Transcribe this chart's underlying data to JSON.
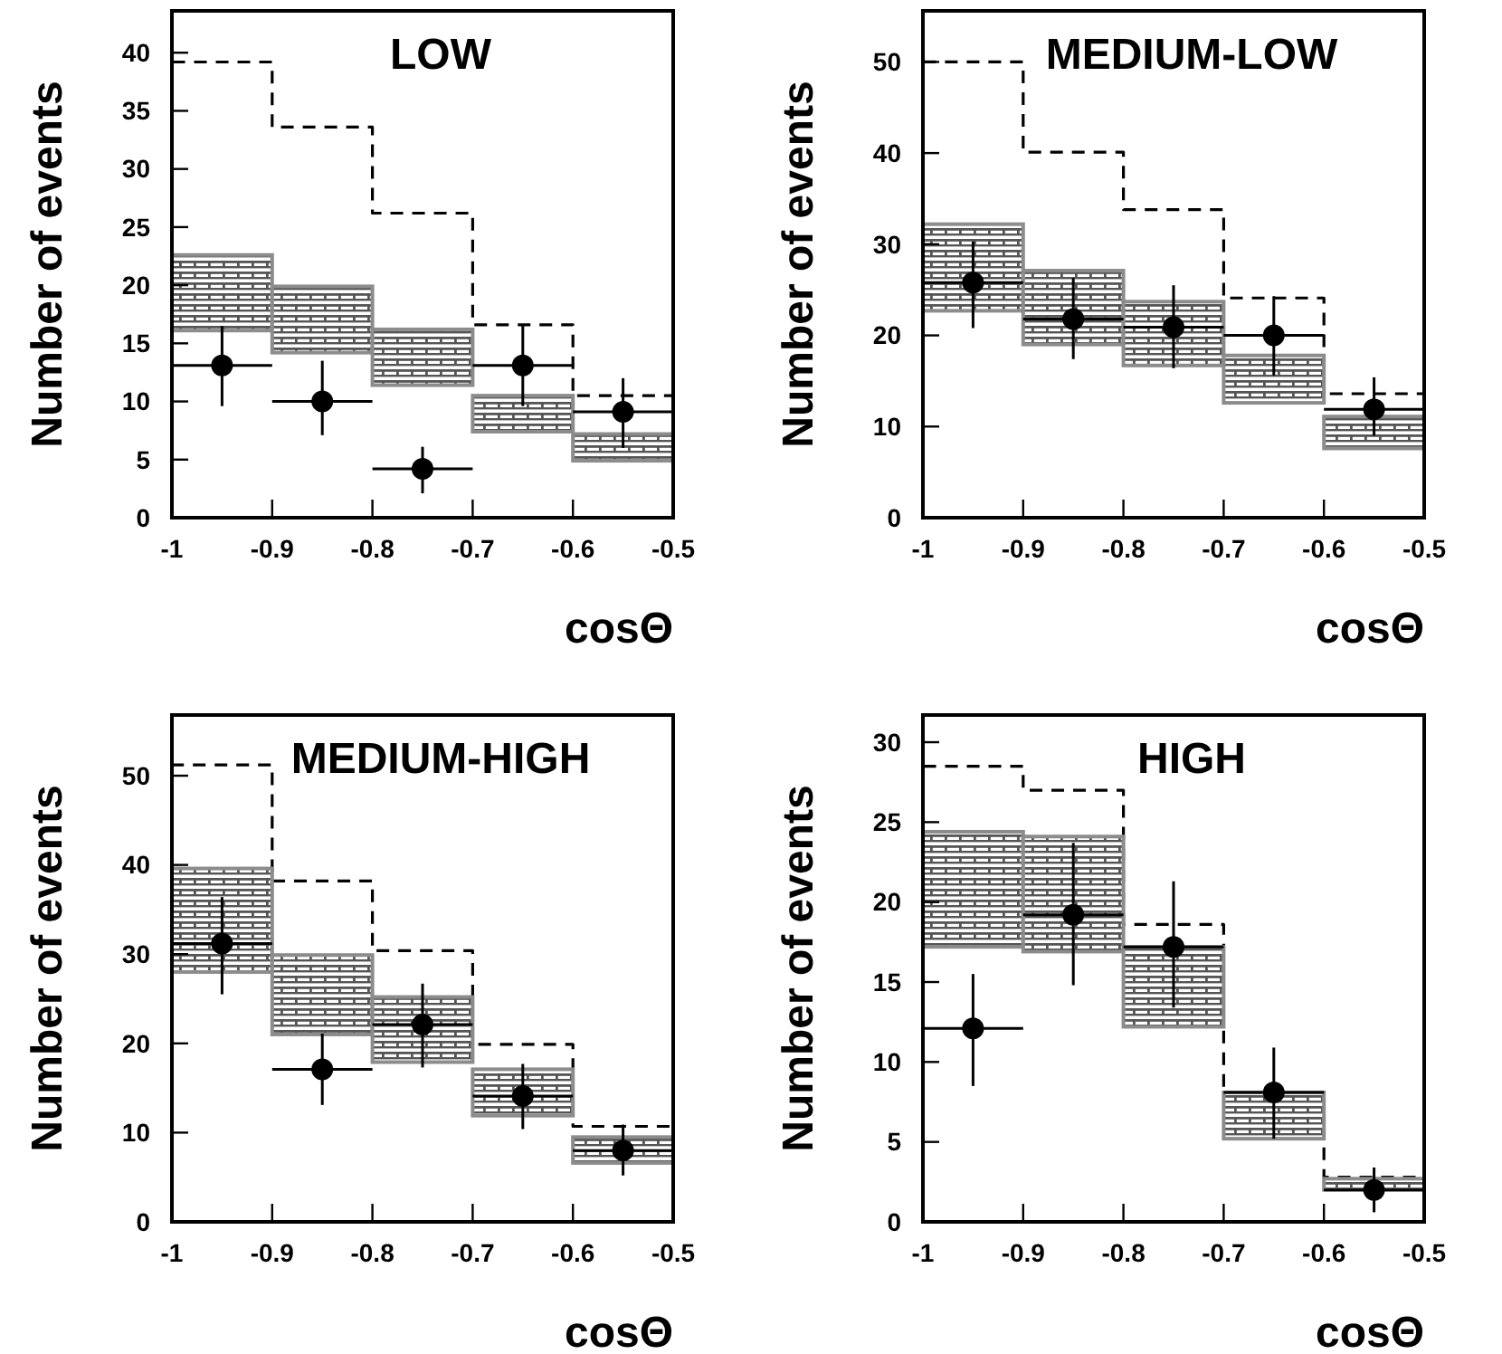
{
  "chart_data": [
    {
      "type": "histogram",
      "title": "LOW",
      "xlabel": "cosΘ",
      "ylabel": "Number of events",
      "xlim": [
        -1,
        -0.5
      ],
      "xticks": [
        -1,
        -0.9,
        -0.8,
        -0.7,
        -0.6,
        -0.5
      ],
      "ylim": [
        0,
        43.6
      ],
      "yticks": [
        0,
        5,
        10,
        15,
        20,
        25,
        30,
        35,
        40
      ],
      "bins": [
        -1,
        -0.9,
        -0.8,
        -0.7,
        -0.6,
        -0.5
      ],
      "series": [
        {
          "type": "histogram",
          "color": "#000000",
          "line_style": "dashed",
          "values": [
            39.2,
            33.6,
            26.2,
            16.6,
            10.5
          ]
        },
        {
          "type": "bar",
          "color": "#8c8c8c",
          "x": [
            -0.95,
            -0.85,
            -0.75,
            -0.65,
            -0.55
          ],
          "base": [
            16.1,
            14.2,
            11.4,
            7.4,
            4.9
          ],
          "values": [
            6.5,
            5.7,
            4.8,
            3.1,
            2.3
          ]
        },
        {
          "type": "scatter",
          "color": "#000000",
          "marker": "circle",
          "x": [
            -0.95,
            -0.85,
            -0.75,
            -0.65,
            -0.55
          ],
          "values": [
            13.1,
            10,
            4.2,
            13.1,
            9.1
          ],
          "errors": [
            [
              9.6,
              16.5
            ],
            [
              7.1,
              13.5
            ],
            [
              2.1,
              6.1
            ],
            [
              9.6,
              16.6
            ],
            [
              6,
              12
            ]
          ],
          "xerrors": [
            0.05,
            0.05,
            0.05,
            0.05,
            0.05
          ]
        }
      ]
    },
    {
      "type": "histogram",
      "title": "MEDIUM-LOW",
      "xlabel": "cosΘ",
      "ylabel": "Number of events",
      "xlim": [
        -1,
        -0.5
      ],
      "xticks": [
        -1,
        -0.9,
        -0.8,
        -0.7,
        -0.6,
        -0.5
      ],
      "ylim": [
        0,
        55.6
      ],
      "yticks": [
        0,
        10,
        20,
        30,
        40,
        50
      ],
      "bins": [
        -1,
        -0.9,
        -0.8,
        -0.7,
        -0.6,
        -0.5
      ],
      "series": [
        {
          "type": "histogram",
          "color": "#000000",
          "line_style": "dashed",
          "values": [
            50,
            40.1,
            33.8,
            24.1,
            13.6
          ]
        },
        {
          "type": "bar",
          "color": "#8c8c8c",
          "x": [
            -0.95,
            -0.85,
            -0.75,
            -0.65,
            -0.55
          ],
          "base": [
            22.7,
            19,
            16.7,
            12.6,
            7.6
          ],
          "values": [
            9.5,
            8.1,
            7,
            5.2,
            3.5
          ]
        },
        {
          "type": "scatter",
          "color": "#000000",
          "marker": "circle",
          "x": [
            -0.95,
            -0.85,
            -0.75,
            -0.65,
            -0.55
          ],
          "values": [
            25.8,
            21.8,
            20.9,
            20,
            11.9
          ],
          "errors": [
            [
              20.8,
              30.3
            ],
            [
              17.4,
              26.3
            ],
            [
              16.4,
              25.5
            ],
            [
              15.6,
              24.3
            ],
            [
              9,
              15.4
            ]
          ],
          "xerrors": [
            0.05,
            0.05,
            0.05,
            0.05,
            0.05
          ]
        }
      ]
    },
    {
      "type": "histogram",
      "title": "MEDIUM-HIGH",
      "xlabel": "cosΘ",
      "ylabel": "Number of events",
      "xlim": [
        -1,
        -0.5
      ],
      "xticks": [
        -1,
        -0.9,
        -0.8,
        -0.7,
        -0.6,
        -0.5
      ],
      "ylim": [
        0,
        56.8
      ],
      "yticks": [
        0,
        10,
        20,
        30,
        40,
        50
      ],
      "bins": [
        -1,
        -0.9,
        -0.8,
        -0.7,
        -0.6,
        -0.5
      ],
      "series": [
        {
          "type": "histogram",
          "color": "#000000",
          "line_style": "dashed",
          "values": [
            51.2,
            38.2,
            30.4,
            19.9,
            10.7
          ]
        },
        {
          "type": "bar",
          "color": "#8c8c8c",
          "x": [
            -0.95,
            -0.85,
            -0.75,
            -0.65,
            -0.55
          ],
          "base": [
            28,
            21,
            17.9,
            11.9,
            6.6
          ],
          "values": [
            11.6,
            8.9,
            7.3,
            5.2,
            2.9
          ]
        },
        {
          "type": "scatter",
          "color": "#000000",
          "marker": "circle",
          "x": [
            -0.95,
            -0.85,
            -0.75,
            -0.65,
            -0.55
          ],
          "values": [
            31.2,
            17.1,
            22.1,
            14.1,
            8
          ],
          "errors": [
            [
              25.5,
              36.4
            ],
            [
              13.1,
              21.1
            ],
            [
              17.3,
              26.7
            ],
            [
              10.4,
              17.7
            ],
            [
              5.2,
              10.9
            ]
          ],
          "xerrors": [
            0.05,
            0.05,
            0.05,
            0.05,
            0.05
          ]
        }
      ]
    },
    {
      "type": "histogram",
      "title": "HIGH",
      "xlabel": "cosΘ",
      "ylabel": "Number of events",
      "xlim": [
        -1,
        -0.5
      ],
      "xticks": [
        -1,
        -0.9,
        -0.8,
        -0.7,
        -0.6,
        -0.5
      ],
      "ylim": [
        0,
        31.7
      ],
      "yticks": [
        0,
        5,
        10,
        15,
        20,
        25,
        30
      ],
      "bins": [
        -1,
        -0.9,
        -0.8,
        -0.7,
        -0.6,
        -0.5
      ],
      "series": [
        {
          "type": "histogram",
          "color": "#000000",
          "line_style": "dashed",
          "values": [
            28.5,
            27,
            18.6,
            8.1,
            2.8
          ]
        },
        {
          "type": "bar",
          "color": "#8c8c8c",
          "x": [
            -0.95,
            -0.85,
            -0.75,
            -0.65,
            -0.55
          ],
          "base": [
            17.2,
            16.9,
            12.2,
            5.2,
            2
          ],
          "values": [
            7.2,
            7.2,
            5,
            2.9,
            0.7
          ]
        },
        {
          "type": "scatter",
          "color": "#000000",
          "marker": "circle",
          "x": [
            -0.95,
            -0.85,
            -0.75,
            -0.65,
            -0.55
          ],
          "values": [
            12.1,
            19.2,
            17.2,
            8.1,
            2
          ],
          "errors": [
            [
              8.5,
              15.5
            ],
            [
              14.8,
              23.7
            ],
            [
              13.4,
              21.3
            ],
            [
              5.2,
              10.9
            ],
            [
              0.6,
              3.4
            ]
          ],
          "xerrors": [
            0.05,
            0.05,
            0.05,
            0.05,
            0.05
          ]
        }
      ]
    }
  ]
}
